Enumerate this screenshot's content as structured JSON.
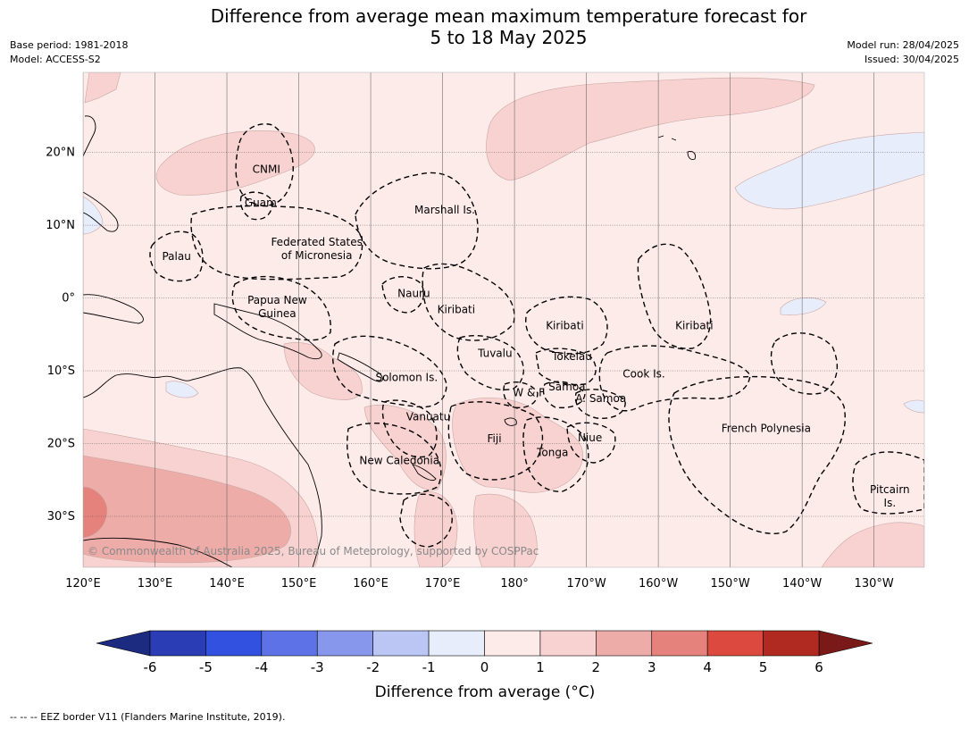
{
  "title_line1": "Difference from average mean maximum temperature forecast for",
  "title_line2": "5 to 18 May 2025",
  "meta_left": [
    "Base period: 1981-2018",
    "Model: ACCESS-S2"
  ],
  "meta_right": [
    "Model run: 28/04/2025",
    "Issued: 30/04/2025"
  ],
  "lon_ticks": [
    {
      "lon": 120,
      "label": "120°E"
    },
    {
      "lon": 130,
      "label": "130°E"
    },
    {
      "lon": 140,
      "label": "140°E"
    },
    {
      "lon": 150,
      "label": "150°E"
    },
    {
      "lon": 160,
      "label": "160°E"
    },
    {
      "lon": 170,
      "label": "170°E"
    },
    {
      "lon": 180,
      "label": "180°"
    },
    {
      "lon": 190,
      "label": "170°W"
    },
    {
      "lon": 200,
      "label": "160°W"
    },
    {
      "lon": 210,
      "label": "150°W"
    },
    {
      "lon": 220,
      "label": "140°W"
    },
    {
      "lon": 230,
      "label": "130°W"
    }
  ],
  "lat_ticks": [
    {
      "lat": 20,
      "label": "20°N"
    },
    {
      "lat": 10,
      "label": "10°N"
    },
    {
      "lat": 0,
      "label": "0°"
    },
    {
      "lat": -10,
      "label": "10°S"
    },
    {
      "lat": -20,
      "label": "20°S"
    },
    {
      "lat": -30,
      "label": "30°S"
    }
  ],
  "map_extent": {
    "lon_min": 120,
    "lon_max": 237,
    "lat_min": -37,
    "lat_max": 31
  },
  "regions": [
    {
      "name": "CNMI",
      "label": [
        "CNMI"
      ],
      "lon": 145.5,
      "lat": 17.2
    },
    {
      "name": "Guam",
      "label": [
        "Guam"
      ],
      "lon": 144.7,
      "lat": 12.6
    },
    {
      "name": "Marshall Is.",
      "label": [
        "Marshall Is."
      ],
      "lon": 170.3,
      "lat": 11.6
    },
    {
      "name": "Federated States of Micronesia",
      "label": [
        "Federated States",
        "of Micronesia"
      ],
      "lon": 152.5,
      "lat": 7.2
    },
    {
      "name": "Palau",
      "label": [
        "Palau"
      ],
      "lon": 133,
      "lat": 5.2
    },
    {
      "name": "Nauru",
      "label": [
        "Nauru"
      ],
      "lon": 166,
      "lat": 0.1
    },
    {
      "name": "Papua New Guinea",
      "label": [
        "Papua New",
        "Guinea"
      ],
      "lon": 147,
      "lat": -0.8
    },
    {
      "name": "Kiribati",
      "label": [
        "Kiribati"
      ],
      "lon": 171.9,
      "lat": -2.1
    },
    {
      "name": "Kiribati",
      "label": [
        "Kiribati"
      ],
      "lon": 187,
      "lat": -4.3
    },
    {
      "name": "Kiribati",
      "label": [
        "Kiribati"
      ],
      "lon": 205,
      "lat": -4.3
    },
    {
      "name": "Tuvalu",
      "label": [
        "Tuvalu"
      ],
      "lon": 177.3,
      "lat": -8.1
    },
    {
      "name": "Tokelau",
      "label": [
        "Tokelau"
      ],
      "lon": 188,
      "lat": -8.5
    },
    {
      "name": "Solomon Is.",
      "label": [
        "Solomon Is."
      ],
      "lon": 165,
      "lat": -11.4
    },
    {
      "name": "Cook Is.",
      "label": [
        "Cook Is."
      ],
      "lon": 198,
      "lat": -10.9
    },
    {
      "name": "Samoa",
      "label": [
        "Samoa"
      ],
      "lon": 187.3,
      "lat": -12.7
    },
    {
      "name": "W & F",
      "label": [
        "W & F"
      ],
      "lon": 182,
      "lat": -13.5
    },
    {
      "name": "A. Samoa",
      "label": [
        "A. Samoa"
      ],
      "lon": 192,
      "lat": -14.3
    },
    {
      "name": "Vanuatu",
      "label": [
        "Vanuatu"
      ],
      "lon": 168,
      "lat": -16.8
    },
    {
      "name": "Fiji",
      "label": [
        "Fiji"
      ],
      "lon": 177.2,
      "lat": -19.8
    },
    {
      "name": "Niue",
      "label": [
        "Niue"
      ],
      "lon": 190.5,
      "lat": -19.7
    },
    {
      "name": "French Polynesia",
      "label": [
        "French Polynesia"
      ],
      "lon": 215,
      "lat": -18.4
    },
    {
      "name": "Tonga",
      "label": [
        "Tonga"
      ],
      "lon": 185.3,
      "lat": -21.7
    },
    {
      "name": "New Caledonia",
      "label": [
        "New Caledonia"
      ],
      "lon": 164,
      "lat": -22.8
    },
    {
      "name": "Pitcairn Is.",
      "label": [
        "Pitcairn",
        "Is."
      ],
      "lon": 232.2,
      "lat": -26.8
    }
  ],
  "copyright": "© Commonwealth of Australia 2025, Bureau of Meteorology, supported by COSPPac",
  "colorbar": {
    "title": "Difference from average (°C)",
    "tick_labels": [
      "-6",
      "-5",
      "-4",
      "-3",
      "-2",
      "-1",
      "0",
      "1",
      "2",
      "3",
      "4",
      "5",
      "6"
    ],
    "low_extend_color": "#1c2a80",
    "high_extend_color": "#7a1a18",
    "bin_colors": [
      "#2a3db5",
      "#3351e0",
      "#5d72e6",
      "#8797ec",
      "#bcc6f5",
      "#e8edfc",
      "#fdebea",
      "#f7d2d0",
      "#eeaca8",
      "#e5827c",
      "#dc4a3f",
      "#b12a22"
    ]
  },
  "legend_colors": {
    "background_0_1": "#fdebea",
    "band_1_2": "#f7d2d0",
    "band_2_3": "#eeaca8",
    "band_3_4": "#e5827c",
    "band_neg1_0": "#e8edfc",
    "eez_line": "#000000",
    "grid_line": "#555555"
  },
  "footer": "--  --  -- EEZ border V11 (Flanders Marine Institute, 2019)."
}
